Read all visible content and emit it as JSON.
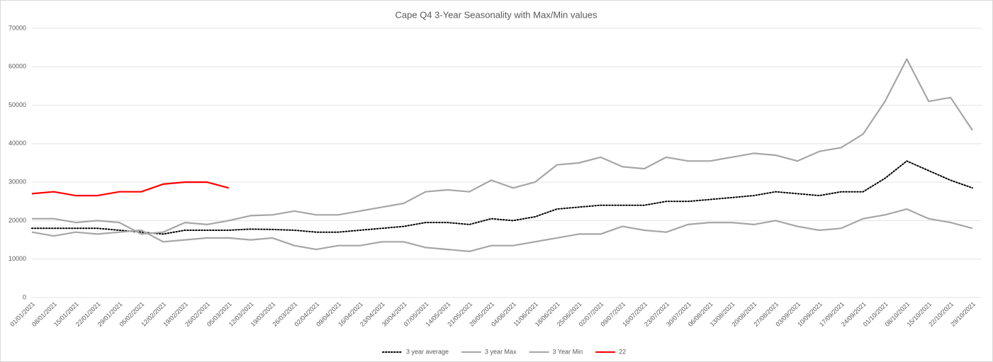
{
  "chart_data": {
    "type": "line",
    "title": "Cape Q4 3-Year Seasonality with Max/Min values",
    "x": [
      "01/01/2021",
      "08/01/2021",
      "15/01/2021",
      "22/01/2021",
      "29/01/2021",
      "05/02/2021",
      "12/02/2021",
      "19/02/2021",
      "26/02/2021",
      "05/03/2021",
      "12/03/2021",
      "19/03/2021",
      "26/03/2021",
      "02/04/2021",
      "09/04/2021",
      "16/04/2021",
      "23/04/2021",
      "30/04/2021",
      "07/05/2021",
      "14/05/2021",
      "21/05/2021",
      "28/05/2021",
      "04/06/2021",
      "11/06/2021",
      "18/06/2021",
      "25/06/2021",
      "02/07/2021",
      "09/07/2021",
      "16/07/2021",
      "23/07/2021",
      "30/07/2021",
      "06/08/2021",
      "13/08/2021",
      "20/08/2021",
      "27/08/2021",
      "03/09/2021",
      "10/09/2021",
      "17/09/2021",
      "24/09/2021",
      "01/10/2021",
      "08/10/2021",
      "15/10/2021",
      "22/10/2021",
      "29/10/2021"
    ],
    "series": [
      {
        "name": "3 year average",
        "color": "#000000",
        "line_style": "dotted",
        "values": [
          18000,
          18000,
          18000,
          18000,
          17500,
          17000,
          16500,
          17500,
          17500,
          17500,
          17800,
          17700,
          17500,
          17000,
          17000,
          17500,
          18000,
          18500,
          19500,
          19500,
          19000,
          20500,
          20000,
          21000,
          23000,
          23500,
          24000,
          24000,
          24000,
          25000,
          25000,
          25500,
          26000,
          26500,
          27500,
          27000,
          26500,
          27500,
          27500,
          31000,
          35500,
          33000,
          30500,
          28500
        ]
      },
      {
        "name": "3 year Max",
        "color": "#a6a6a6",
        "line_style": "solid",
        "values": [
          20500,
          20500,
          19500,
          20000,
          19500,
          16500,
          17000,
          19500,
          19000,
          20000,
          21300,
          21500,
          22500,
          21500,
          21500,
          22500,
          23500,
          24500,
          27500,
          28000,
          27500,
          30500,
          28500,
          30000,
          34500,
          35000,
          36500,
          34000,
          33500,
          36500,
          35500,
          35500,
          36500,
          37500,
          37000,
          35500,
          38000,
          39000,
          42500,
          51000,
          62000,
          51000,
          52000,
          43500
        ]
      },
      {
        "name": "3 Year Min",
        "color": "#a6a6a6",
        "line_style": "solid",
        "values": [
          17000,
          16000,
          17000,
          16500,
          17000,
          17500,
          14500,
          15000,
          15500,
          15500,
          15000,
          15500,
          13500,
          12500,
          13500,
          13500,
          14500,
          14500,
          13000,
          12500,
          12000,
          13500,
          13500,
          14500,
          15500,
          16500,
          16500,
          18500,
          17500,
          17000,
          19000,
          19500,
          19500,
          19000,
          20000,
          18500,
          17500,
          18000,
          20500,
          21500,
          23000,
          20500,
          19500,
          18000
        ]
      },
      {
        "name": "22",
        "color": "#ff0000",
        "line_style": "solid",
        "values": [
          27000,
          27500,
          26500,
          26500,
          27500,
          27500,
          29500,
          30000,
          30000,
          28500,
          null,
          null,
          null,
          null,
          null,
          null,
          null,
          null,
          null,
          null,
          null,
          null,
          null,
          null,
          null,
          null,
          null,
          null,
          null,
          null,
          null,
          null,
          null,
          null,
          null,
          null,
          null,
          null,
          null,
          null,
          null,
          null,
          null,
          null
        ]
      }
    ],
    "ylim": [
      0,
      70000
    ],
    "yticks": [
      0,
      10000,
      20000,
      30000,
      40000,
      50000,
      60000,
      70000
    ],
    "grid": true,
    "legend": "bottom"
  }
}
